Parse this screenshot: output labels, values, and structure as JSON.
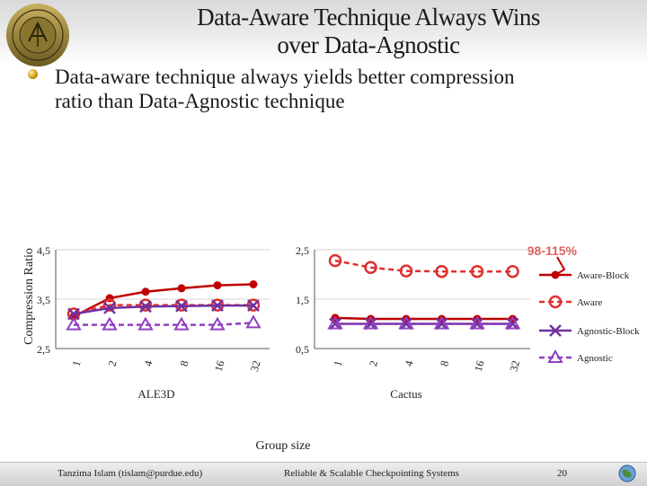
{
  "slide": {
    "title_line1": "Data-Aware Technique Always Wins",
    "title_line2": "over Data-Agnostic",
    "bullet_line1": "Data-aware technique always yields better compression",
    "bullet_line2": "ratio than Data-Agnostic technique",
    "footer_left": "Tanzima Islam (tislam@purdue.edu)",
    "footer_center": "Reliable & Scalable Checkpointing Systems",
    "page_number": "20",
    "logo_text": "purdue university"
  },
  "colors": {
    "aware_block": "#c00000",
    "aware": "#e03030",
    "agnostic_block": "#7030a0",
    "agnostic": "#9040c0",
    "highlight": "#e06060"
  },
  "shared": {
    "y_axis_label": "Compression Ratio",
    "x_axis_label": "Group size",
    "annotation": "98-115%"
  },
  "legend": [
    {
      "label": "Aware-Block",
      "marker": "dot",
      "color": "#c00000"
    },
    {
      "label": "Aware",
      "marker": "circle",
      "color": "#e03030"
    },
    {
      "label": "Agnostic-Block",
      "marker": "x",
      "color": "#7030a0"
    },
    {
      "label": "Agnostic",
      "marker": "triangle",
      "color": "#9040c0"
    }
  ],
  "chart_data": [
    {
      "type": "line",
      "title": "ALE3D",
      "categories": [
        "1",
        "2",
        "4",
        "8",
        "16",
        "32"
      ],
      "yticks": [
        "4,5",
        "3,5",
        "2,5"
      ],
      "ylim": [
        2.5,
        4.5
      ],
      "grid": true,
      "series": [
        {
          "name": "Aware-Block",
          "values": [
            3.15,
            3.52,
            3.65,
            3.72,
            3.78,
            3.8
          ]
        },
        {
          "name": "Aware",
          "values": [
            3.2,
            3.38,
            3.38,
            3.38,
            3.38,
            3.38
          ]
        },
        {
          "name": "Agnostic-Block",
          "values": [
            3.2,
            3.32,
            3.35,
            3.36,
            3.37,
            3.37
          ]
        },
        {
          "name": "Agnostic",
          "values": [
            2.98,
            2.98,
            2.98,
            2.98,
            2.98,
            3.02
          ]
        }
      ]
    },
    {
      "type": "line",
      "title": "Cactus",
      "categories": [
        "1",
        "2",
        "4",
        "8",
        "16",
        "32"
      ],
      "yticks": [
        "2,5",
        "1,5",
        "0,5"
      ],
      "ylim": [
        0.5,
        2.5
      ],
      "grid": true,
      "series": [
        {
          "name": "Aware-Block",
          "values": [
            1.12,
            1.1,
            1.1,
            1.1,
            1.1,
            1.1
          ]
        },
        {
          "name": "Aware",
          "values": [
            2.28,
            2.14,
            2.07,
            2.06,
            2.06,
            2.06
          ]
        },
        {
          "name": "Agnostic-Block",
          "values": [
            1.0,
            1.0,
            1.0,
            1.0,
            1.0,
            1.0
          ]
        },
        {
          "name": "Agnostic",
          "values": [
            1.0,
            1.0,
            1.0,
            1.0,
            1.0,
            1.0
          ]
        }
      ]
    }
  ]
}
